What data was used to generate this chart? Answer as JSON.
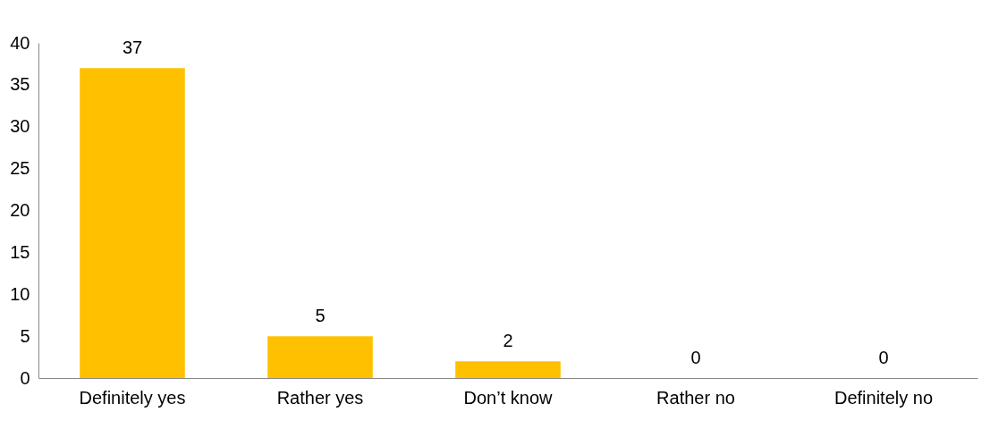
{
  "chart_data": {
    "type": "bar",
    "categories": [
      "Definitely yes",
      "Rather yes",
      "Don’t know",
      "Rather no",
      "Definitely no"
    ],
    "values": [
      37,
      5,
      2,
      0,
      0
    ],
    "color": "#ffc000",
    "ylim": [
      0,
      40
    ],
    "yticks": [
      0,
      5,
      10,
      15,
      20,
      25,
      30,
      35,
      40
    ],
    "grid": false,
    "data_labels": true
  }
}
